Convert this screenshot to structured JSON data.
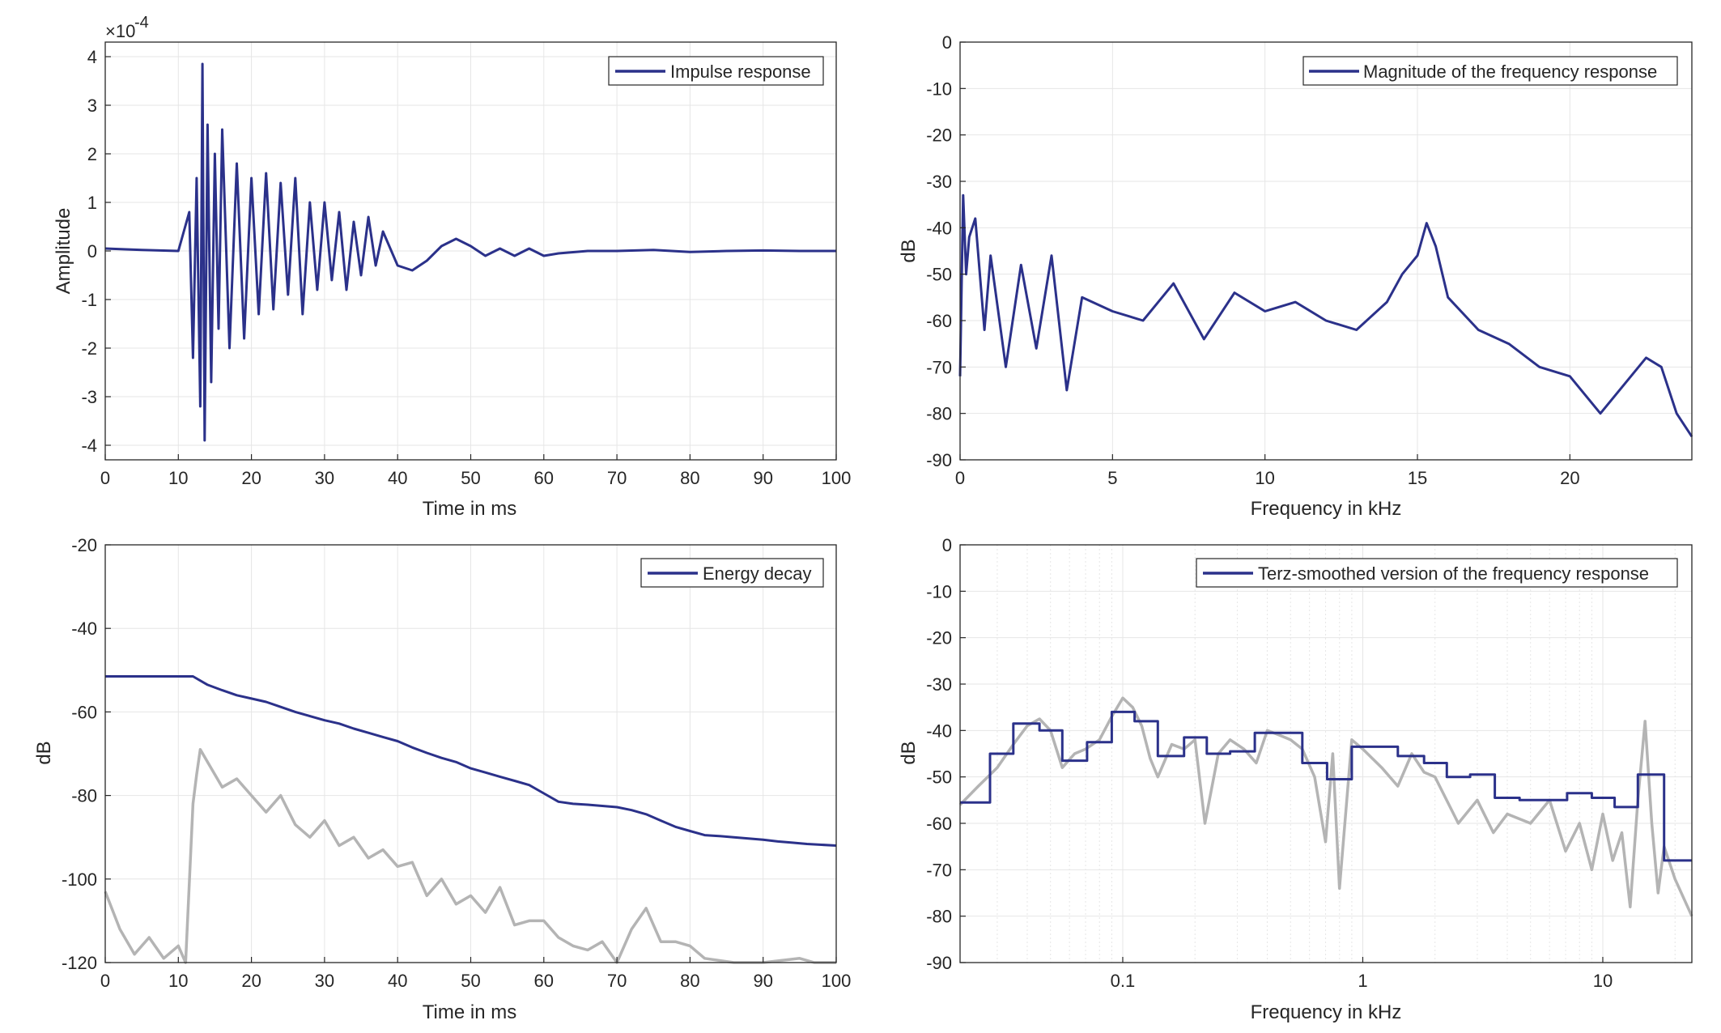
{
  "colors": {
    "series": "#2b318a",
    "reference": "#b4b4b4",
    "grid": "#e6e6e6",
    "axis": "#262626"
  },
  "chart_data": [
    {
      "id": "impulse",
      "type": "line",
      "title": "",
      "xlabel": "Time in ms",
      "ylabel": "Amplitude",
      "exponent_label": "×10",
      "exponent_power": "-4",
      "xlim": [
        0,
        100
      ],
      "ylim": [
        -4.3,
        4.3
      ],
      "xticks": [
        0,
        10,
        20,
        30,
        40,
        50,
        60,
        70,
        80,
        90,
        100
      ],
      "yticks": [
        -4,
        -3,
        -2,
        -1,
        0,
        1,
        2,
        3,
        4
      ],
      "grid": true,
      "legend": {
        "placement": "top-right",
        "entries": [
          "Impulse response"
        ]
      },
      "series": [
        {
          "name": "Impulse response",
          "x": [
            0,
            5,
            10,
            11.5,
            12,
            12.5,
            13,
            13.3,
            13.6,
            14,
            14.5,
            15,
            15.5,
            16,
            17,
            18,
            19,
            20,
            21,
            22,
            23,
            24,
            25,
            26,
            27,
            28,
            29,
            30,
            31,
            32,
            33,
            34,
            35,
            36,
            37,
            38,
            40,
            42,
            44,
            46,
            48,
            50,
            52,
            54,
            56,
            58,
            60,
            62,
            66,
            70,
            75,
            80,
            85,
            90,
            95,
            100
          ],
          "y": [
            0.05,
            0.02,
            0.0,
            0.8,
            -2.2,
            1.5,
            -3.2,
            3.85,
            -3.9,
            2.6,
            -2.7,
            2.0,
            -1.6,
            2.5,
            -2.0,
            1.8,
            -1.8,
            1.5,
            -1.3,
            1.6,
            -1.2,
            1.4,
            -0.9,
            1.5,
            -1.3,
            1.0,
            -0.8,
            1.0,
            -0.6,
            0.8,
            -0.8,
            0.6,
            -0.5,
            0.7,
            -0.3,
            0.4,
            -0.3,
            -0.4,
            -0.2,
            0.1,
            0.25,
            0.1,
            -0.1,
            0.05,
            -0.1,
            0.05,
            -0.1,
            -0.05,
            0.0,
            0.0,
            0.02,
            -0.02,
            0.0,
            0.01,
            0.0,
            0.0
          ]
        }
      ]
    },
    {
      "id": "magnitude",
      "type": "line",
      "title": "",
      "xlabel": "Frequency in kHz",
      "ylabel": "dB",
      "xlim": [
        0,
        24
      ],
      "ylim": [
        -90,
        0
      ],
      "xticks": [
        0,
        5,
        10,
        15,
        20
      ],
      "yticks": [
        0,
        -10,
        -20,
        -30,
        -40,
        -50,
        -60,
        -70,
        -80,
        -90
      ],
      "grid": true,
      "legend": {
        "placement": "top-right",
        "entries": [
          "Magnitude of the frequency response"
        ]
      },
      "series": [
        {
          "name": "Magnitude of the frequency response",
          "x": [
            0,
            0.1,
            0.2,
            0.3,
            0.5,
            0.8,
            1,
            1.5,
            2,
            2.5,
            3,
            3.5,
            4,
            5,
            6,
            7,
            8,
            9,
            10,
            11,
            12,
            13,
            14,
            14.5,
            15,
            15.3,
            15.6,
            16,
            17,
            18,
            19,
            20,
            21,
            22,
            22.5,
            23,
            23.5,
            24
          ],
          "y": [
            -72,
            -33,
            -50,
            -42,
            -38,
            -62,
            -46,
            -70,
            -48,
            -66,
            -46,
            -75,
            -55,
            -58,
            -60,
            -52,
            -64,
            -54,
            -58,
            -56,
            -60,
            -62,
            -56,
            -50,
            -46,
            -39,
            -44,
            -55,
            -62,
            -65,
            -70,
            -72,
            -80,
            -72,
            -68,
            -70,
            -80,
            -85
          ]
        }
      ]
    },
    {
      "id": "energy",
      "type": "line",
      "title": "",
      "xlabel": "Time in ms",
      "ylabel": "dB",
      "xlim": [
        0,
        100
      ],
      "ylim": [
        -120,
        -20
      ],
      "xticks": [
        0,
        10,
        20,
        30,
        40,
        50,
        60,
        70,
        80,
        90,
        100
      ],
      "yticks": [
        -20,
        -40,
        -60,
        -80,
        -100,
        -120
      ],
      "grid": true,
      "legend": {
        "placement": "top-right",
        "entries": [
          "Energy decay"
        ]
      },
      "series": [
        {
          "name": "Energy decay",
          "x": [
            0,
            12,
            14,
            16,
            18,
            20,
            22,
            24,
            26,
            28,
            30,
            32,
            34,
            36,
            38,
            40,
            42,
            44,
            46,
            48,
            50,
            52,
            54,
            56,
            58,
            60,
            62,
            64,
            66,
            68,
            70,
            72,
            74,
            76,
            78,
            80,
            82,
            84,
            86,
            88,
            90,
            92,
            94,
            96,
            98,
            100
          ],
          "y": [
            -51.5,
            -51.5,
            -53.5,
            -54.8,
            -56,
            -56.8,
            -57.6,
            -58.8,
            -60,
            -61,
            -62,
            -62.8,
            -64,
            -65,
            -66,
            -67,
            -68.5,
            -69.8,
            -71,
            -72,
            -73.5,
            -74.5,
            -75.5,
            -76.5,
            -77.5,
            -79.5,
            -81.5,
            -82,
            -82.2,
            -82.5,
            -82.8,
            -83.5,
            -84.5,
            -86,
            -87.5,
            -88.5,
            -89.5,
            -89.7,
            -90,
            -90.3,
            -90.6,
            -91,
            -91.3,
            -91.6,
            -91.8,
            -92
          ]
        },
        {
          "name": "",
          "x": [
            0,
            2,
            4,
            6,
            8,
            10,
            11,
            12,
            12.5,
            13,
            14,
            16,
            18,
            20,
            22,
            24,
            26,
            28,
            30,
            32,
            34,
            36,
            38,
            40,
            42,
            44,
            46,
            48,
            50,
            52,
            54,
            56,
            58,
            60,
            62,
            64,
            66,
            68,
            70,
            72,
            74,
            76,
            78,
            80,
            82,
            86,
            90,
            95,
            97,
            100
          ],
          "y": [
            -103,
            -112,
            -118,
            -114,
            -119,
            -116,
            -120,
            -82,
            -75,
            -69,
            -72,
            -78,
            -76,
            -80,
            -84,
            -80,
            -87,
            -90,
            -86,
            -92,
            -90,
            -95,
            -93,
            -97,
            -96,
            -104,
            -100,
            -106,
            -104,
            -108,
            -102,
            -111,
            -110,
            -110,
            -114,
            -116,
            -117,
            -115,
            -120,
            -112,
            -107,
            -115,
            -115,
            -116,
            -119,
            -120,
            -120,
            -119,
            -120,
            -120
          ]
        }
      ]
    },
    {
      "id": "terz",
      "type": "line",
      "title": "",
      "xlabel": "Frequency in kHz",
      "ylabel": "dB",
      "xscale": "log",
      "xlim": [
        0.021,
        23.5
      ],
      "ylim": [
        -90,
        0
      ],
      "xticks": [
        0.1,
        1,
        10
      ],
      "xtick_labels": [
        "0.1",
        "1",
        "10"
      ],
      "yticks": [
        0,
        -10,
        -20,
        -30,
        -40,
        -50,
        -60,
        -70,
        -80,
        -90
      ],
      "grid": true,
      "legend": {
        "placement": "top-right",
        "entries": [
          "Terz-smoothed version of the frequency response"
        ]
      },
      "series": [
        {
          "name": "Terz-smoothed version of the frequency response",
          "x": [
            0.021,
            0.028,
            0.028,
            0.035,
            0.035,
            0.045,
            0.045,
            0.056,
            0.056,
            0.071,
            0.071,
            0.09,
            0.09,
            0.112,
            0.112,
            0.14,
            0.14,
            0.18,
            0.18,
            0.224,
            0.224,
            0.28,
            0.28,
            0.355,
            0.355,
            0.56,
            0.56,
            0.71,
            0.71,
            0.9,
            0.9,
            1.4,
            1.4,
            1.8,
            1.8,
            2.24,
            2.24,
            2.8,
            2.8,
            3.55,
            3.55,
            4.5,
            4.5,
            7.1,
            7.1,
            9,
            9,
            11.2,
            11.2,
            14,
            14,
            18,
            18,
            23.5
          ],
          "y": [
            -55.5,
            -55.5,
            -45,
            -45,
            -38.5,
            -38.5,
            -40,
            -40,
            -46.5,
            -46.5,
            -42.5,
            -42.5,
            -36,
            -36,
            -38,
            -38,
            -45.5,
            -45.5,
            -41.5,
            -41.5,
            -45,
            -45,
            -44.5,
            -44.5,
            -40.5,
            -40.5,
            -47,
            -47,
            -50.5,
            -50.5,
            -43.5,
            -43.5,
            -45.5,
            -45.5,
            -47,
            -47,
            -50,
            -50,
            -49.5,
            -49.5,
            -54.5,
            -54.5,
            -55,
            -55,
            -53.5,
            -53.5,
            -54.5,
            -54.5,
            -56.5,
            -56.5,
            -49.5,
            -49.5,
            -68,
            -68
          ]
        },
        {
          "name": "",
          "x": [
            0.021,
            0.025,
            0.03,
            0.035,
            0.04,
            0.045,
            0.05,
            0.056,
            0.063,
            0.07,
            0.08,
            0.09,
            0.1,
            0.11,
            0.12,
            0.13,
            0.14,
            0.16,
            0.18,
            0.2,
            0.22,
            0.25,
            0.28,
            0.32,
            0.36,
            0.4,
            0.45,
            0.5,
            0.56,
            0.63,
            0.7,
            0.75,
            0.8,
            0.9,
            1,
            1.2,
            1.4,
            1.6,
            1.8,
            2,
            2.5,
            3,
            3.5,
            4,
            5,
            6,
            7,
            8,
            9,
            10,
            11,
            12,
            13,
            14,
            15,
            16,
            17,
            18,
            20,
            23.5
          ],
          "y": [
            -56,
            -52,
            -48,
            -43,
            -39,
            -37.5,
            -40,
            -48,
            -45,
            -44,
            -42,
            -37,
            -33,
            -35,
            -39,
            -46,
            -50,
            -43,
            -44,
            -42,
            -60,
            -45,
            -42,
            -44,
            -47,
            -40,
            -41,
            -42,
            -44,
            -50,
            -64,
            -45,
            -74,
            -42,
            -44,
            -48,
            -52,
            -45,
            -49,
            -50,
            -60,
            -55,
            -62,
            -58,
            -60,
            -55,
            -66,
            -60,
            -70,
            -58,
            -68,
            -62,
            -78,
            -55,
            -38,
            -60,
            -75,
            -65,
            -72,
            -80
          ]
        }
      ]
    }
  ]
}
